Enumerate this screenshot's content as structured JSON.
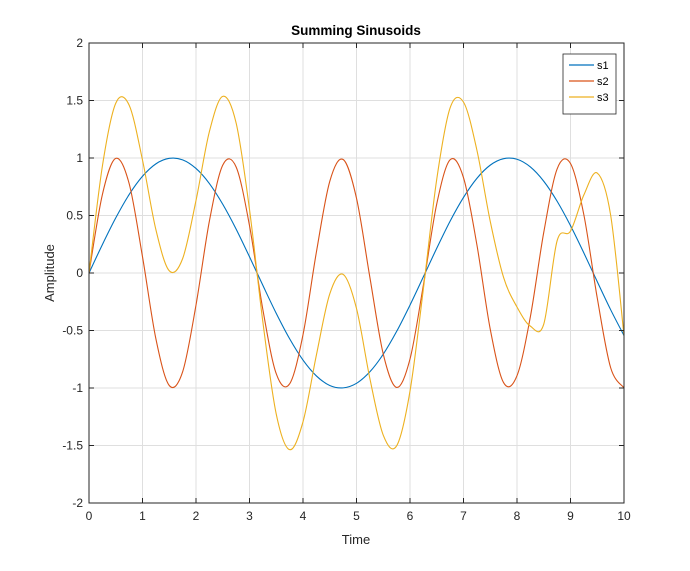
{
  "chart_data": {
    "type": "line",
    "title": "Summing Sinusoids",
    "xlabel": "Time",
    "ylabel": "Amplitude",
    "xlim": [
      0,
      10
    ],
    "ylim": [
      -2,
      2
    ],
    "xticks": [
      0,
      1,
      2,
      3,
      4,
      5,
      6,
      7,
      8,
      9,
      10
    ],
    "yticks": [
      -2,
      -1.5,
      -1,
      -0.5,
      0,
      0.5,
      1,
      1.5,
      2
    ],
    "grid": true,
    "legend_position": "top-right",
    "x": [
      0,
      0.25,
      0.5,
      0.75,
      1,
      1.25,
      1.5,
      1.75,
      2,
      2.25,
      2.5,
      2.75,
      3,
      3.25,
      3.5,
      3.75,
      4,
      4.25,
      4.5,
      4.75,
      5,
      5.25,
      5.5,
      5.75,
      6,
      6.25,
      6.5,
      6.75,
      7,
      7.25,
      7.5,
      7.75,
      8,
      8.25,
      8.5,
      8.75,
      9,
      9.25,
      9.5,
      9.75,
      10
    ],
    "series": [
      {
        "name": "s1",
        "color": "#0072bd",
        "values": [
          0,
          0.247,
          0.479,
          0.682,
          0.841,
          0.949,
          0.997,
          0.984,
          0.909,
          0.778,
          0.598,
          0.382,
          0.141,
          -0.108,
          -0.351,
          -0.572,
          -0.757,
          -0.895,
          -0.978,
          -0.999,
          -0.959,
          -0.859,
          -0.706,
          -0.508,
          -0.279,
          -0.033,
          0.215,
          0.451,
          0.657,
          0.823,
          0.938,
          0.994,
          0.989,
          0.922,
          0.798,
          0.624,
          0.412,
          0.174,
          -0.075,
          -0.319,
          -0.544
        ]
      },
      {
        "name": "s2",
        "color": "#d95319",
        "values": [
          0,
          0.682,
          0.997,
          0.778,
          0.141,
          -0.572,
          -0.978,
          -0.859,
          -0.279,
          0.451,
          0.938,
          0.922,
          0.412,
          -0.319,
          -0.876,
          -0.964,
          -0.537,
          0.181,
          0.796,
          0.987,
          0.65,
          -0.038,
          -0.704,
          -0.995,
          -0.748,
          -0.105,
          0.601,
          0.985,
          0.829,
          0.246,
          -0.489,
          -0.954,
          -0.893,
          -0.38,
          0.353,
          0.905,
          0.952,
          0.505,
          -0.217,
          -0.823,
          -0.999
        ]
      },
      {
        "name": "s3",
        "color": "#edb120",
        "values": [
          0,
          0.929,
          1.476,
          1.46,
          0.982,
          0.377,
          0.019,
          0.125,
          0.63,
          1.229,
          1.536,
          1.304,
          0.553,
          -0.427,
          -1.227,
          -1.536,
          -1.294,
          -0.714,
          -0.182,
          -0.012,
          -0.309,
          -0.918,
          -1.41,
          -1.503,
          -1.027,
          -0.138,
          0.816,
          1.436,
          1.486,
          1.069,
          0.449,
          -0.04,
          -0.296,
          -0.462,
          -0.445,
          0.281,
          0.364,
          0.679,
          0.869,
          0.504,
          -0.545
        ]
      }
    ]
  }
}
